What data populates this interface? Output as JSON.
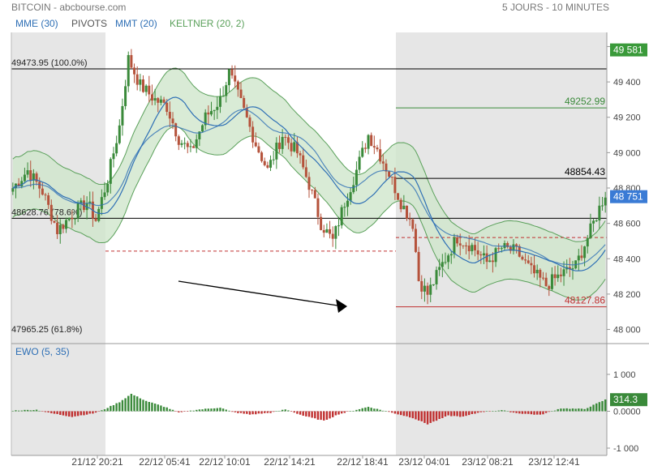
{
  "header": {
    "title": "BITCOIN - abcbourse.com",
    "period": "5 JOURS - 10 MINUTES"
  },
  "indicators": [
    {
      "label": "MME (30)",
      "color": "#2e6fb5"
    },
    {
      "label": "PIVOTS",
      "color": "#555555"
    },
    {
      "label": "MMT (20)",
      "color": "#2e6fb5"
    },
    {
      "label": "KELTNER (20, 2)",
      "color": "#5aa05a"
    }
  ],
  "colors": {
    "up": "#3a8a3a",
    "down": "#b5523b",
    "keltner_fill": "#cfe6cc",
    "keltner_line": "#5aa05a",
    "ema": "#2e6fb5",
    "session_shade": "#e6e6e6"
  },
  "chart_data": [
    {
      "type": "candlestick",
      "title": "BITCOIN",
      "ylim": [
        47920,
        49680
      ],
      "y_ticks": [
        "49 600",
        "49 400",
        "49 200",
        "49 000",
        "48 800",
        "48 600",
        "48 400",
        "48 200",
        "48 000"
      ],
      "x_ticks": [
        "21/12 20:21",
        "22/12 05:41",
        "22/12 10:01",
        "22/12 14:21",
        "22/12 18:41",
        "23/12 04:01",
        "23/12 08:21",
        "23/12 12:41"
      ],
      "close_path": [
        [
          0,
          48800
        ],
        [
          5,
          48900
        ],
        [
          10,
          48780
        ],
        [
          15,
          48560
        ],
        [
          20,
          48650
        ],
        [
          25,
          48720
        ],
        [
          28,
          48620
        ],
        [
          32,
          48850
        ],
        [
          36,
          49150
        ],
        [
          39,
          49530
        ],
        [
          43,
          49380
        ],
        [
          48,
          49300
        ],
        [
          52,
          49260
        ],
        [
          56,
          49080
        ],
        [
          60,
          49000
        ],
        [
          65,
          49200
        ],
        [
          70,
          49300
        ],
        [
          73,
          49450
        ],
        [
          77,
          49280
        ],
        [
          82,
          49050
        ],
        [
          86,
          48900
        ],
        [
          91,
          49100
        ],
        [
          96,
          49000
        ],
        [
          100,
          48820
        ],
        [
          104,
          48600
        ],
        [
          108,
          48500
        ],
        [
          112,
          48720
        ],
        [
          116,
          48900
        ],
        [
          120,
          49100
        ],
        [
          123,
          49020
        ],
        [
          127,
          48880
        ],
        [
          131,
          48720
        ],
        [
          135,
          48600
        ],
        [
          137,
          48280
        ],
        [
          140,
          48200
        ],
        [
          145,
          48370
        ],
        [
          150,
          48520
        ],
        [
          155,
          48470
        ],
        [
          160,
          48380
        ],
        [
          165,
          48460
        ],
        [
          170,
          48440
        ],
        [
          175,
          48330
        ],
        [
          180,
          48250
        ],
        [
          185,
          48310
        ],
        [
          190,
          48360
        ],
        [
          195,
          48560
        ],
        [
          200,
          48770
        ]
      ],
      "last_price": "48 751",
      "levels": [
        {
          "value": 49473.95,
          "label": "49473.95  (100.0%)",
          "style": "solid",
          "color": "#000000",
          "extent": "full"
        },
        {
          "value": 48628.76,
          "label": "48628.76  (78.6%)",
          "style": "solid",
          "color": "#000000",
          "extent": "full"
        },
        {
          "value": 47965.25,
          "label": "47965.25  (61.8%)",
          "style": "none",
          "color": "#000000",
          "extent": "label"
        },
        {
          "value": 48443,
          "style": "dashed",
          "color": "#c03030",
          "extent": "first-part"
        },
        {
          "value": 48520,
          "style": "dashed",
          "color": "#c03030",
          "extent": "right-part"
        },
        {
          "value": 49252.99,
          "label": "49252.99",
          "style": "solid",
          "color": "#3a8a3a",
          "extent": "right-part"
        },
        {
          "value": 48854.43,
          "label": "48854.43",
          "style": "solid",
          "color": "#000000",
          "extent": "right-part"
        },
        {
          "value": 48127.86,
          "label": "48127.86",
          "style": "solid",
          "color": "#c03030",
          "extent": "right-part"
        }
      ],
      "price_badges": [
        {
          "value": 49581,
          "label": "49 581",
          "color": "#3a9a3a"
        },
        {
          "value": 48751,
          "label": "48 751",
          "color": "#3a7bd5"
        }
      ],
      "annotation": "trend arrow"
    },
    {
      "type": "bar",
      "title": "EWO (5, 35)",
      "ylim": [
        -1000,
        1000
      ],
      "y_ticks": [
        "1 000",
        "0.0000",
        "-1 000"
      ],
      "bar_path": [
        [
          0,
          20
        ],
        [
          8,
          40
        ],
        [
          12,
          -40
        ],
        [
          20,
          -150
        ],
        [
          27,
          -60
        ],
        [
          30,
          20
        ],
        [
          36,
          250
        ],
        [
          40,
          470
        ],
        [
          45,
          280
        ],
        [
          52,
          100
        ],
        [
          56,
          -40
        ],
        [
          62,
          40
        ],
        [
          70,
          100
        ],
        [
          74,
          -20
        ],
        [
          80,
          -90
        ],
        [
          87,
          -40
        ],
        [
          92,
          50
        ],
        [
          98,
          -120
        ],
        [
          105,
          -260
        ],
        [
          110,
          -80
        ],
        [
          115,
          20
        ],
        [
          120,
          120
        ],
        [
          127,
          -20
        ],
        [
          135,
          -180
        ],
        [
          140,
          -350
        ],
        [
          147,
          -120
        ],
        [
          152,
          -150
        ],
        [
          158,
          -20
        ],
        [
          165,
          30
        ],
        [
          170,
          -50
        ],
        [
          178,
          -100
        ],
        [
          185,
          80
        ],
        [
          193,
          60
        ],
        [
          200,
          314
        ]
      ],
      "last_value": "314.3"
    }
  ]
}
